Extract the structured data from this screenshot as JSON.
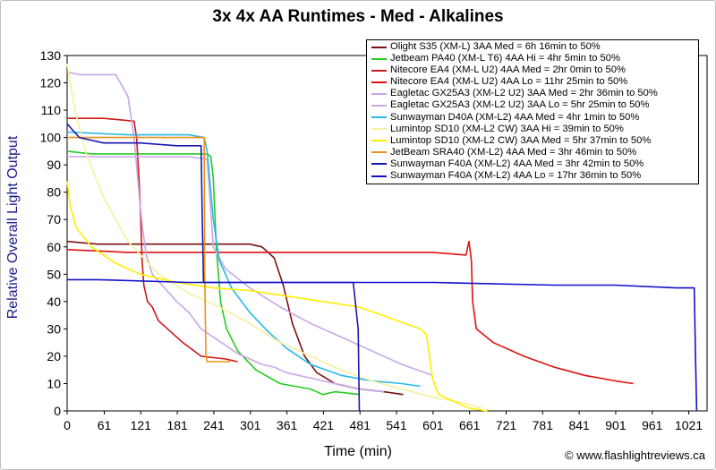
{
  "title": "3x 4x AA Runtimes - Med - Alkalines",
  "credit": "© www.flashlightreviews.ca",
  "chart_data": {
    "type": "line",
    "title": "3x 4x AA Runtimes - Med - Alkalines",
    "xlabel": "Time (min)",
    "ylabel": "Relative Overall Light Output",
    "xlim": [
      0,
      1051
    ],
    "ylim": [
      0,
      130
    ],
    "xticks": [
      0,
      61,
      121,
      181,
      241,
      301,
      361,
      421,
      481,
      541,
      601,
      661,
      721,
      781,
      841,
      901,
      961,
      1021
    ],
    "xtick_labels": [
      "0",
      "61",
      "121",
      "181",
      "241",
      "301",
      "361",
      "421",
      "481",
      "541",
      "601",
      "661",
      "721",
      "781",
      "841",
      "901",
      "961",
      "1021"
    ],
    "yticks": [
      0,
      10,
      20,
      30,
      40,
      50,
      60,
      70,
      80,
      90,
      100,
      110,
      120,
      130
    ],
    "ytick_labels": [
      "0",
      "10",
      "20",
      "30",
      "40",
      "50",
      "60",
      "70",
      "80",
      "90",
      "100",
      "110",
      "120",
      "130"
    ],
    "grid": false,
    "legend_position": "top-right",
    "series": [
      {
        "name": "Olight S35 (XM-L) 3AA Med = 6h 16min to 50%",
        "color": "#7a1010",
        "x": [
          0,
          50,
          150,
          250,
          300,
          320,
          340,
          355,
          370,
          390,
          410,
          440,
          480,
          520,
          552
        ],
        "y": [
          62,
          61,
          61,
          61,
          61,
          60,
          56,
          46,
          32,
          20,
          14,
          10,
          8,
          7,
          6
        ]
      },
      {
        "name": "Jetbeam PA40 (XM-L T6) 4AA Hi = 4hr 5min to 50%",
        "color": "#22cc22",
        "x": [
          0,
          40,
          100,
          180,
          230,
          236,
          240,
          245,
          252,
          262,
          280,
          310,
          350,
          400,
          420,
          440,
          480
        ],
        "y": [
          95,
          94,
          94,
          94,
          94,
          93,
          85,
          60,
          40,
          30,
          22,
          15,
          10,
          8,
          6,
          7,
          6
        ]
      },
      {
        "name": "Nitecore EA4 (XM-L U2) 4AA Med = 2hr 0min to 50%",
        "color": "#cc1a1a",
        "x": [
          0,
          60,
          110,
          114,
          118,
          121,
          123,
          126,
          132,
          140,
          150,
          160,
          190,
          220,
          260,
          280
        ],
        "y": [
          107,
          107,
          106,
          100,
          85,
          70,
          55,
          46,
          40,
          38,
          33,
          31,
          25,
          20,
          19,
          18
        ]
      },
      {
        "name": "Nitecore EA4 (XM-L U2) 4AA Lo = 11hr 25min to 50%",
        "color": "#dd1111",
        "x": [
          0,
          100,
          200,
          300,
          400,
          500,
          600,
          655,
          660,
          664,
          666,
          672,
          700,
          750,
          800,
          850,
          900,
          930
        ],
        "y": [
          59,
          58,
          58,
          58,
          58,
          58,
          58,
          57,
          62,
          55,
          40,
          30,
          25,
          20,
          16,
          13,
          11,
          10
        ]
      },
      {
        "name": "Eagletac GX25A3 (XM-L2 U2) 3AA Med = 2hr 36min to 50%",
        "color": "#c9a6e6",
        "x": [
          0,
          20,
          80,
          100,
          110,
          120,
          125,
          130,
          140,
          160,
          180,
          200,
          220,
          240,
          260,
          280,
          300,
          320,
          340,
          360,
          380,
          400,
          420,
          440,
          460,
          480,
          520
        ],
        "y": [
          124,
          123,
          123,
          115,
          100,
          75,
          65,
          57,
          50,
          45,
          40,
          36,
          30,
          27,
          24,
          21,
          19,
          17,
          16,
          14,
          13,
          12,
          11,
          10,
          9,
          8,
          7
        ]
      },
      {
        "name": "Eagletac GX25A3 (XM-L2 U2) 3AA Lo = 5hr 25min to 50%",
        "color": "#c9a6e6",
        "x": [
          0,
          100,
          200,
          230,
          240,
          260,
          300,
          350,
          400,
          450,
          500,
          550,
          600
        ],
        "y": [
          93,
          93,
          93,
          92,
          60,
          52,
          45,
          38,
          32,
          27,
          22,
          17,
          13
        ]
      },
      {
        "name": "Sunwayman D40A (XM-L2) 4AA Med = 4hr 1min to 50%",
        "color": "#2ab8e8",
        "x": [
          0,
          100,
          200,
          225,
          230,
          240,
          250,
          270,
          300,
          330,
          360,
          400,
          450,
          500,
          550,
          580
        ],
        "y": [
          102,
          101,
          101,
          100,
          95,
          70,
          55,
          45,
          36,
          29,
          23,
          17,
          13,
          11,
          10,
          9
        ]
      },
      {
        "name": "Lumintop SD10 (XM-L2 CW) 3AA Hi = 39min to 50%",
        "color": "#f5f0a0",
        "x": [
          0,
          5,
          15,
          30,
          60,
          100,
          150,
          200,
          250,
          300,
          350,
          400,
          450,
          500,
          550,
          600,
          650,
          680
        ],
        "y": [
          127,
          120,
          108,
          95,
          78,
          62,
          50,
          43,
          38,
          32,
          25,
          20,
          15,
          11,
          8,
          5,
          3,
          1
        ]
      },
      {
        "name": "Lumintop SD10 (XM-L2 CW) 3AA Med = 5hr 37min to 50%",
        "color": "#ffee00",
        "x": [
          0,
          5,
          15,
          40,
          80,
          120,
          180,
          240,
          300,
          360,
          420,
          480,
          580,
          590,
          595,
          600,
          610,
          640,
          660,
          690
        ],
        "y": [
          84,
          75,
          67,
          60,
          54,
          50,
          47,
          45,
          44,
          42,
          40,
          38,
          30,
          28,
          20,
          12,
          6,
          3,
          1,
          0
        ]
      },
      {
        "name": "JetBeam SRA40 (XM-L2) 4AA Med = 3hr 46min to 50%",
        "color": "#f0901a",
        "x": [
          0,
          60,
          120,
          180,
          225,
          226,
          228,
          230,
          260,
          268
        ],
        "y": [
          100,
          100,
          100,
          100,
          100,
          50,
          20,
          18,
          18,
          18
        ]
      },
      {
        "name": "Sunwayman F40A (XM-L2) 4AA Med = 3hr 42min to 50%",
        "color": "#1818b0",
        "x": [
          0,
          20,
          60,
          120,
          180,
          220,
          222,
          224,
          300,
          400,
          470,
          478,
          480
        ],
        "y": [
          105,
          100,
          98,
          98,
          97,
          97,
          70,
          47,
          47,
          47,
          47,
          30,
          0
        ]
      },
      {
        "name": "Sunwayman F40A (XM-L2) 4AA Lo = 17hr 36min to 50%",
        "color": "#1111cc",
        "x": [
          0,
          50,
          200,
          400,
          600,
          800,
          900,
          1000,
          1030,
          1032,
          1034
        ],
        "y": [
          48,
          48,
          47,
          47,
          47,
          46,
          46,
          45,
          45,
          20,
          0
        ]
      }
    ]
  }
}
